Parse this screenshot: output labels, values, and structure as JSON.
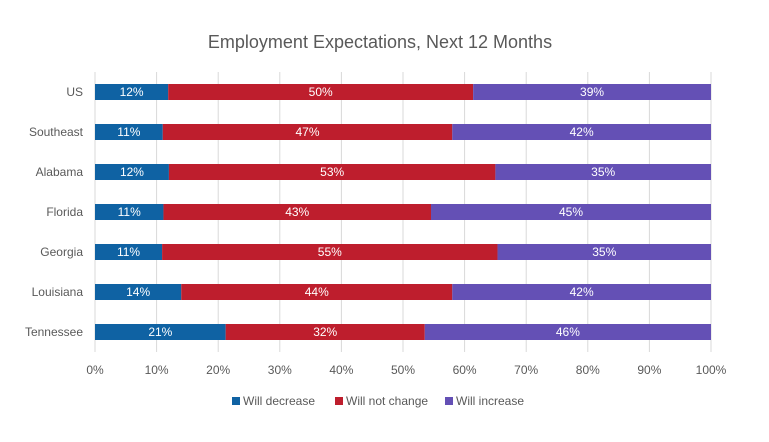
{
  "chart_data": {
    "type": "bar",
    "orientation": "horizontal",
    "stacked": "100%",
    "title": "Employment Expectations, Next 12 Months",
    "categories": [
      "US",
      "Southeast",
      "Alabama",
      "Florida",
      "Georgia",
      "Louisiana",
      "Tennessee"
    ],
    "series": [
      {
        "name": "Will decrease",
        "color": "#0F62A3",
        "values": [
          12,
          11,
          12,
          11,
          11,
          14,
          21
        ],
        "labels": [
          "12%",
          "11%",
          "12%",
          "11%",
          "11%",
          "14%",
          "21%"
        ]
      },
      {
        "name": "Will not change",
        "color": "#BE1E2D",
        "values": [
          50,
          47,
          53,
          43,
          55,
          44,
          32
        ],
        "labels": [
          "50%",
          "47%",
          "53%",
          "43%",
          "55%",
          "44%",
          "32%"
        ]
      },
      {
        "name": "Will increase",
        "color": "#6450B5",
        "values": [
          39,
          42,
          35,
          45,
          35,
          42,
          46
        ],
        "labels": [
          "39%",
          "42%",
          "35%",
          "45%",
          "35%",
          "42%",
          "46%"
        ]
      }
    ],
    "xlim": [
      0,
      100
    ],
    "xticks": [
      "0%",
      "10%",
      "20%",
      "30%",
      "40%",
      "50%",
      "60%",
      "70%",
      "80%",
      "90%",
      "100%"
    ],
    "grid": true,
    "legend": "bottom"
  }
}
